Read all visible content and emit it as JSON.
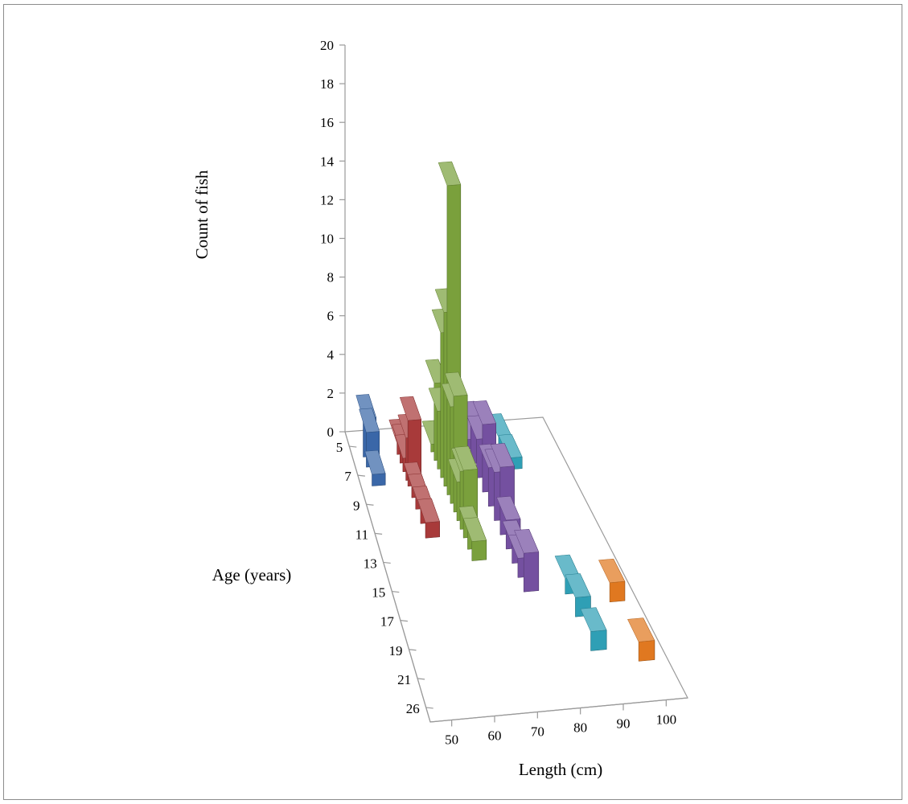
{
  "chart_data": {
    "type": "bar",
    "subtype": "3d-column",
    "title": "",
    "zlabel": "Count of fish",
    "ylabel": "Age (years)",
    "xlabel": "Length (cm)",
    "zlim": [
      0,
      20
    ],
    "z_ticks": [
      "0",
      "2",
      "4",
      "6",
      "8",
      "10",
      "12",
      "14",
      "16",
      "18",
      "20"
    ],
    "age_categories": [
      "5",
      "7",
      "9",
      "11",
      "13",
      "15",
      "17",
      "19",
      "21",
      "26"
    ],
    "length_categories": [
      "50",
      "60",
      "70",
      "80",
      "90",
      "100"
    ],
    "grid": false,
    "legend": "none",
    "series": [
      {
        "length": "50",
        "color": "#3a67a8",
        "bars": [
          {
            "age_pos": 0.0,
            "value": 2.0
          },
          {
            "age_pos": 0.35,
            "value": 1.8
          },
          {
            "age_pos": 1.0,
            "value": 0.6
          }
        ]
      },
      {
        "length": "60",
        "color": "#a83a3a",
        "bars": [
          {
            "age_pos": 0.0,
            "value": 0.6
          },
          {
            "age_pos": 0.3,
            "value": 0.8
          },
          {
            "age_pos": 0.6,
            "value": 0.7
          },
          {
            "age_pos": 0.9,
            "value": 2.2
          },
          {
            "age_pos": 1.1,
            "value": 3.4
          },
          {
            "age_pos": 1.5,
            "value": 0.6
          },
          {
            "age_pos": 1.9,
            "value": 0.6
          },
          {
            "age_pos": 2.4,
            "value": 0.7
          },
          {
            "age_pos": 2.9,
            "value": 0.8
          }
        ]
      },
      {
        "length": "70",
        "color": "#7aa03c",
        "bars": [
          {
            "age_pos": 0.0,
            "value": 0.4
          },
          {
            "age_pos": 0.3,
            "value": 4.0
          },
          {
            "age_pos": 0.6,
            "value": 3.0
          },
          {
            "age_pos": 0.9,
            "value": 7.5
          },
          {
            "age_pos": 1.2,
            "value": 9.0
          },
          {
            "age_pos": 1.5,
            "value": 16.0
          },
          {
            "age_pos": 1.8,
            "value": 5.0
          },
          {
            "age_pos": 2.1,
            "value": 6.0
          },
          {
            "age_pos": 2.4,
            "value": 2.0
          },
          {
            "age_pos": 2.7,
            "value": 3.0
          },
          {
            "age_pos": 3.0,
            "value": 3.5
          },
          {
            "age_pos": 3.4,
            "value": 1.0
          },
          {
            "age_pos": 3.8,
            "value": 1.0
          }
        ]
      },
      {
        "length": "80",
        "color": "#7450a0",
        "bars": [
          {
            "age_pos": 0.0,
            "value": 0.5
          },
          {
            "age_pos": 0.5,
            "value": 2.0
          },
          {
            "age_pos": 1.0,
            "value": 2.0
          },
          {
            "age_pos": 1.5,
            "value": 3.5
          },
          {
            "age_pos": 2.0,
            "value": 2.0
          },
          {
            "age_pos": 2.5,
            "value": 2.5
          },
          {
            "age_pos": 3.0,
            "value": 3.5
          },
          {
            "age_pos": 3.5,
            "value": 1.5
          },
          {
            "age_pos": 4.0,
            "value": 1.0
          },
          {
            "age_pos": 4.5,
            "value": 1.0
          },
          {
            "age_pos": 5.0,
            "value": 2.0
          }
        ]
      },
      {
        "length": "90",
        "color": "#2f9fb5",
        "bars": [
          {
            "age_pos": 0.0,
            "value": 0.5
          },
          {
            "age_pos": 0.8,
            "value": 0.6
          },
          {
            "age_pos": 5.2,
            "value": 0.8
          },
          {
            "age_pos": 6.0,
            "value": 1.0
          },
          {
            "age_pos": 7.2,
            "value": 1.0
          }
        ]
      },
      {
        "length": "100",
        "color": "#e07820",
        "bars": [
          {
            "age_pos": 5.6,
            "value": 1.0
          },
          {
            "age_pos": 7.7,
            "value": 1.0
          }
        ]
      }
    ]
  }
}
